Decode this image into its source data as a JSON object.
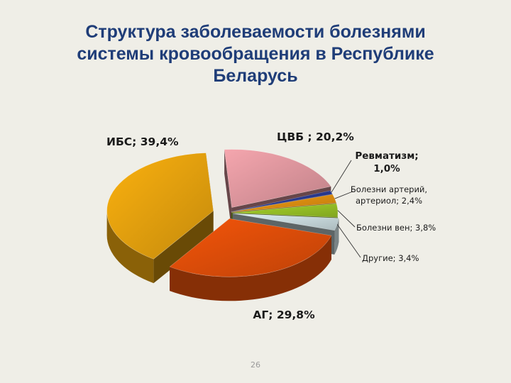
{
  "slide": {
    "title_lines": [
      "Структура заболеваемости болезнями",
      "системы кровообращения в Республике",
      "Беларусь"
    ],
    "page_number": "26"
  },
  "chart_data": {
    "type": "pie",
    "title": "Структура заболеваемости болезнями системы кровообращения в Республике Беларусь",
    "legend": "none",
    "series": [
      {
        "slices": [
          {
            "label": "ЦВБ ; 20,2%",
            "value": 20.2,
            "color": "#f5a6ae"
          },
          {
            "label": "Ревматизм; 1,0%",
            "value": 1.0,
            "color": "#2d3f9e"
          },
          {
            "label": "Болезни артерий, артериол; 2,4%",
            "label_lines": [
              "Болезни артерий,",
              "артериол; 2,4%"
            ],
            "value": 2.4,
            "color": "#f39c12"
          },
          {
            "label": "Болезни вен; 3,8%",
            "value": 3.8,
            "color": "#a6d42a"
          },
          {
            "label": "Другие; 3,4%",
            "value": 3.4,
            "color": "#ddf0f4"
          },
          {
            "label": "АГ; 29,8%",
            "value": 29.8,
            "color": "#f4550a"
          },
          {
            "label": "ИБС; 39,4%",
            "value": 39.4,
            "color": "#fbb10f"
          }
        ]
      }
    ]
  }
}
